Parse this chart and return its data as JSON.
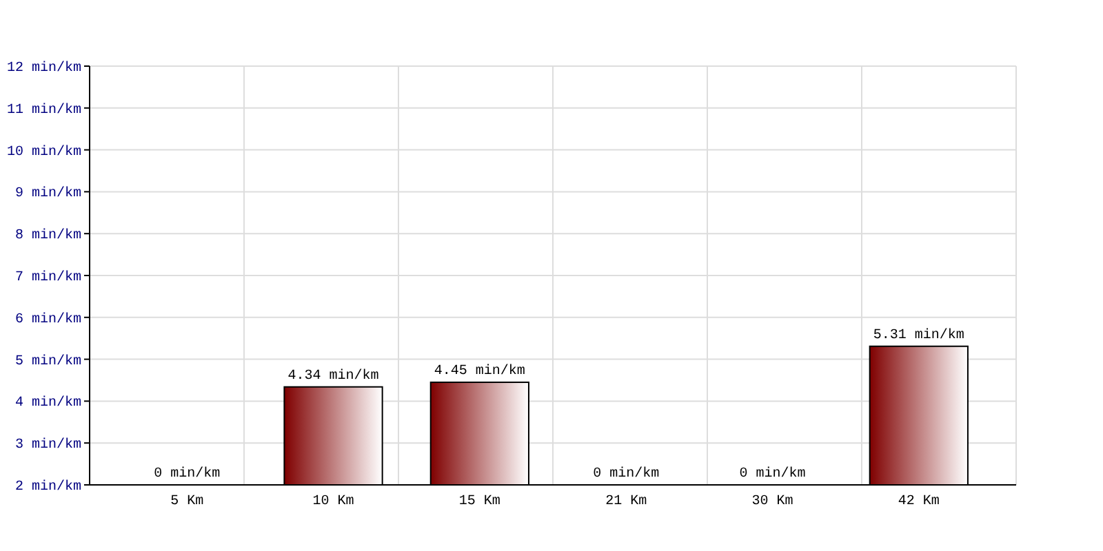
{
  "chart_data": {
    "type": "bar",
    "categories": [
      "5 Km",
      "10 Km",
      "15 Km",
      "21 Km",
      "30 Km",
      "42 Km"
    ],
    "values": [
      null,
      4.34,
      4.45,
      null,
      null,
      5.31
    ],
    "value_labels": [
      "0 min/km",
      "4.34 min/km",
      "4.45 min/km",
      "0 min/km",
      "0 min/km",
      "5.31 min/km"
    ],
    "color": "#7f0000",
    "ylim": [
      2,
      12
    ],
    "yticks": [
      {
        "value": 2,
        "label": "2 min/km"
      },
      {
        "value": 3,
        "label": "3 min/km"
      },
      {
        "value": 4,
        "label": "4 min/km"
      },
      {
        "value": 5,
        "label": "5 min/km"
      },
      {
        "value": 6,
        "label": "6 min/km"
      },
      {
        "value": 7,
        "label": "7 min/km"
      },
      {
        "value": 8,
        "label": "8 min/km"
      },
      {
        "value": 9,
        "label": "9 min/km"
      },
      {
        "value": 10,
        "label": "10 min/km"
      },
      {
        "value": 11,
        "label": "11 min/km"
      },
      {
        "value": 12,
        "label": "12 min/km"
      }
    ],
    "grid": true
  }
}
